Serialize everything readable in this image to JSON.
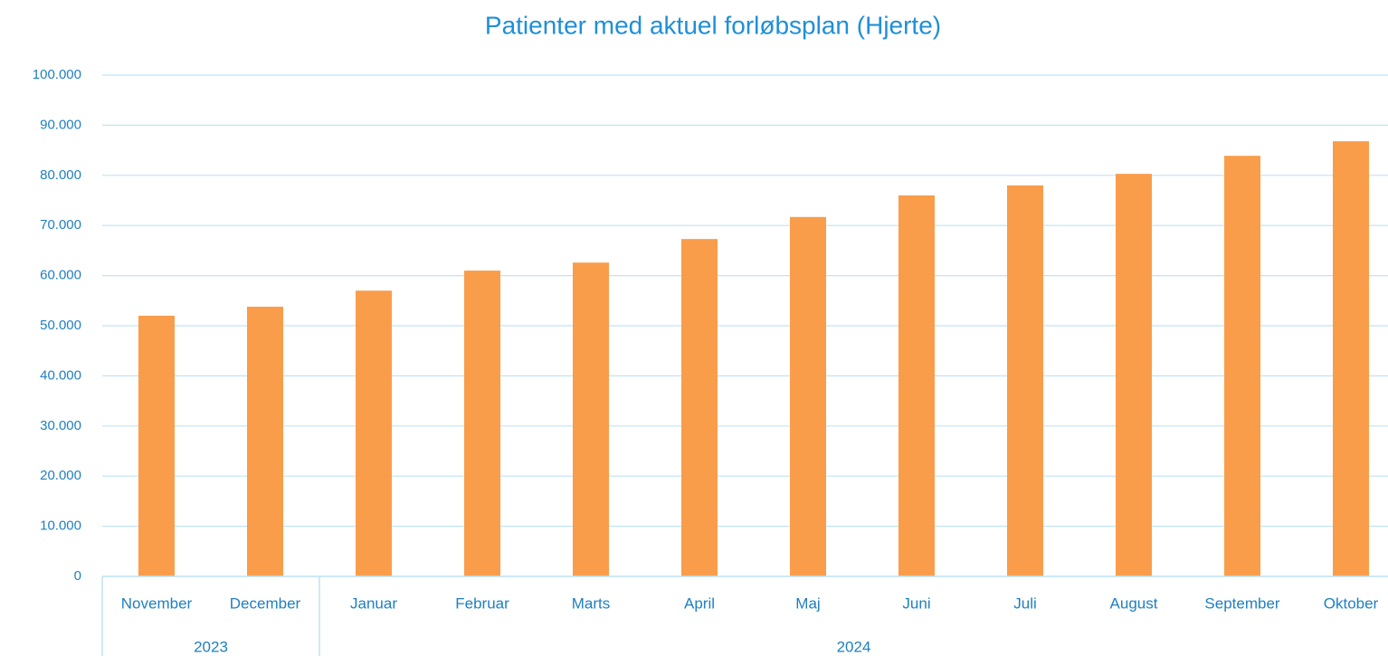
{
  "chart_data": {
    "type": "bar",
    "title": "Patienter med aktuel forløbsplan (Hjerte)",
    "categories": [
      "November",
      "December",
      "Januar",
      "Februar",
      "Marts",
      "April",
      "Maj",
      "Juni",
      "Juli",
      "August",
      "September",
      "Oktober"
    ],
    "groups": [
      {
        "label": "2023",
        "span": 2
      },
      {
        "label": "2024",
        "span": 10
      }
    ],
    "values": [
      52000,
      53800,
      57000,
      61000,
      62600,
      67300,
      71700,
      76000,
      78000,
      80300,
      83900,
      86800
    ],
    "color": "#f99d4b",
    "ylim": [
      0,
      100000
    ],
    "yticks": [
      0,
      {
        "value": 10000,
        "label": "10.000"
      },
      {
        "value": 20000,
        "label": "20.000"
      },
      {
        "value": 30000,
        "label": "30.000"
      },
      {
        "value": 40000,
        "label": "40.000"
      },
      {
        "value": 50000,
        "label": "50.000"
      },
      {
        "value": 60000,
        "label": "60.000"
      },
      {
        "value": 70000,
        "label": "70.000"
      },
      {
        "value": 80000,
        "label": "80.000"
      },
      {
        "value": 90000,
        "label": "90.000"
      },
      {
        "value": 100000,
        "label": "100.000"
      }
    ],
    "grid": true
  }
}
